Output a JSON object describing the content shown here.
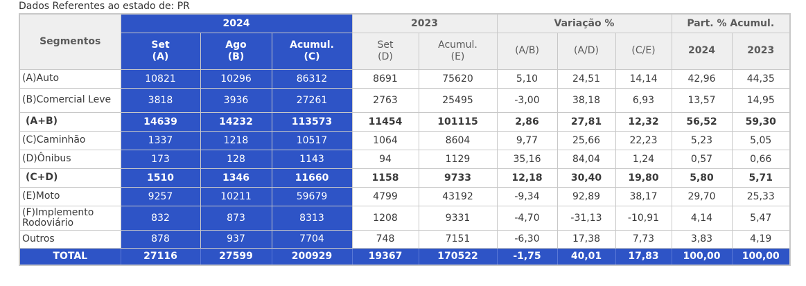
{
  "caption": "Dados Referentes ao estado de: PR",
  "header": {
    "segmentos": "Segmentos",
    "group_2024": "2024",
    "group_2023": "2023",
    "group_variacao": "Variação %",
    "group_part": "Part. % Acumul.",
    "set_a_1": "Set",
    "set_a_2": "(A)",
    "ago_b_1": "Ago",
    "ago_b_2": "(B)",
    "acum_c_1": "Acumul.",
    "acum_c_2": "(C)",
    "set_d_1": "Set",
    "set_d_2": "(D)",
    "acum_e_1": "Acumul.",
    "acum_e_2": "(E)",
    "ab": "(A/B)",
    "ad": "(A/D)",
    "ce": "(C/E)",
    "p2024": "2024",
    "p2023": "2023"
  },
  "rows": [
    {
      "seg": "(A)Auto",
      "a": "10821",
      "b": "10296",
      "c": "86312",
      "d": "8691",
      "e": "75620",
      "ab": "5,10",
      "ad": "24,51",
      "ce": "14,14",
      "p24": "42,96",
      "p23": "44,35"
    },
    {
      "seg": "(B)Comercial Leve",
      "a": "3818",
      "b": "3936",
      "c": "27261",
      "d": "2763",
      "e": "25495",
      "ab": "-3,00",
      "ad": "38,18",
      "ce": "6,93",
      "p24": "13,57",
      "p23": "14,95"
    },
    {
      "seg": "(A+B)",
      "a": "14639",
      "b": "14232",
      "c": "113573",
      "d": "11454",
      "e": "101115",
      "ab": "2,86",
      "ad": "27,81",
      "ce": "12,32",
      "p24": "56,52",
      "p23": "59,30"
    },
    {
      "seg": "(C)Caminhão",
      "a": "1337",
      "b": "1218",
      "c": "10517",
      "d": "1064",
      "e": "8604",
      "ab": "9,77",
      "ad": "25,66",
      "ce": "22,23",
      "p24": "5,23",
      "p23": "5,05"
    },
    {
      "seg": "(D)Ônibus",
      "a": "173",
      "b": "128",
      "c": "1143",
      "d": "94",
      "e": "1129",
      "ab": "35,16",
      "ad": "84,04",
      "ce": "1,24",
      "p24": "0,57",
      "p23": "0,66"
    },
    {
      "seg": "(C+D)",
      "a": "1510",
      "b": "1346",
      "c": "11660",
      "d": "1158",
      "e": "9733",
      "ab": "12,18",
      "ad": "30,40",
      "ce": "19,80",
      "p24": "5,80",
      "p23": "5,71"
    },
    {
      "seg": "(E)Moto",
      "a": "9257",
      "b": "10211",
      "c": "59679",
      "d": "4799",
      "e": "43192",
      "ab": "-9,34",
      "ad": "92,89",
      "ce": "38,17",
      "p24": "29,70",
      "p23": "25,33"
    },
    {
      "seg": "(F)Implemento Rodoviário",
      "a": "832",
      "b": "873",
      "c": "8313",
      "d": "1208",
      "e": "9331",
      "ab": "-4,70",
      "ad": "-31,13",
      "ce": "-10,91",
      "p24": "4,14",
      "p23": "5,47"
    },
    {
      "seg": "Outros",
      "a": "878",
      "b": "937",
      "c": "7704",
      "d": "748",
      "e": "7151",
      "ab": "-6,30",
      "ad": "17,38",
      "ce": "7,73",
      "p24": "3,83",
      "p23": "4,19"
    },
    {
      "seg": "TOTAL",
      "a": "27116",
      "b": "27599",
      "c": "200929",
      "d": "19367",
      "e": "170522",
      "ab": "-1,75",
      "ad": "40,01",
      "ce": "17,83",
      "p24": "100,00",
      "p23": "100,00"
    }
  ],
  "colors": {
    "header_blue": "#2e54c6",
    "header_gray": "#efefef",
    "border": "#c8c8c8"
  }
}
